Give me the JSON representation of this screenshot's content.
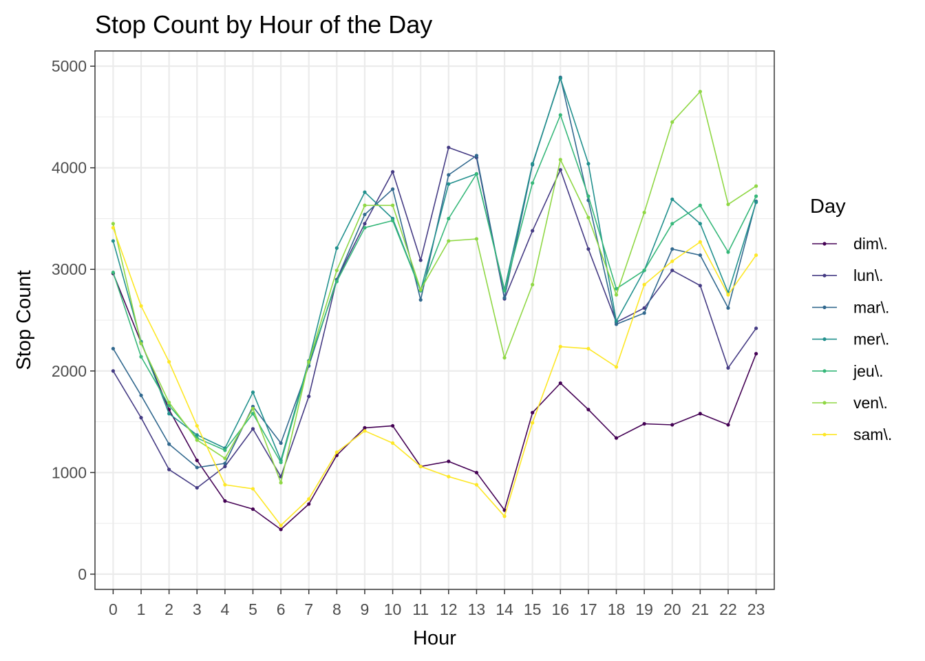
{
  "chart_data": {
    "type": "line",
    "title": "Stop Count by Hour of the Day",
    "xlabel": "Hour",
    "ylabel": "Stop Count",
    "x": [
      0,
      1,
      2,
      3,
      4,
      5,
      6,
      7,
      8,
      9,
      10,
      11,
      12,
      13,
      14,
      15,
      16,
      17,
      18,
      19,
      20,
      21,
      22,
      23
    ],
    "x_ticks": [
      "0",
      "1",
      "2",
      "3",
      "4",
      "5",
      "6",
      "7",
      "8",
      "9",
      "10",
      "11",
      "12",
      "13",
      "14",
      "15",
      "16",
      "17",
      "18",
      "19",
      "20",
      "21",
      "22",
      "23"
    ],
    "ylim": [
      -150,
      5150
    ],
    "y_ticks": [
      0,
      1000,
      2000,
      3000,
      4000,
      5000
    ],
    "grid": true,
    "legend_title": "Day",
    "legend_position": "right",
    "series": [
      {
        "name": "dim\\.",
        "color": "#440154",
        "values": [
          2960,
          2280,
          1620,
          1120,
          720,
          640,
          440,
          690,
          1170,
          1440,
          1460,
          1060,
          1110,
          1000,
          630,
          1590,
          1880,
          1620,
          1340,
          1480,
          1470,
          1580,
          1470,
          2170
        ]
      },
      {
        "name": "lun\\.",
        "color": "#443a83",
        "values": [
          2000,
          1540,
          1030,
          850,
          1060,
          1430,
          960,
          1750,
          2900,
          3450,
          3960,
          3090,
          4200,
          4100,
          2710,
          3380,
          3980,
          3200,
          2480,
          2620,
          2990,
          2840,
          2030,
          2420
        ]
      },
      {
        "name": "mar\\.",
        "color": "#31688e",
        "values": [
          2220,
          1760,
          1280,
          1050,
          1090,
          1650,
          1290,
          2050,
          2900,
          3540,
          3790,
          2700,
          3930,
          4120,
          2720,
          4030,
          4890,
          3680,
          2460,
          2570,
          3200,
          3140,
          2620,
          3670
        ]
      },
      {
        "name": "mer\\.",
        "color": "#21908d",
        "values": [
          3280,
          2290,
          1580,
          1370,
          1240,
          1790,
          1120,
          2100,
          3210,
          3760,
          3500,
          2790,
          3840,
          3940,
          2800,
          4040,
          4880,
          4040,
          2490,
          2990,
          3690,
          3450,
          2770,
          3660
        ]
      },
      {
        "name": "jeu\\.",
        "color": "#35b779",
        "values": [
          2970,
          2140,
          1660,
          1340,
          1220,
          1580,
          1100,
          2080,
          2880,
          3410,
          3480,
          2790,
          3500,
          3940,
          2790,
          3850,
          4520,
          3720,
          2810,
          2990,
          3450,
          3630,
          3170,
          3720
        ]
      },
      {
        "name": "ven\\.",
        "color": "#8fd744",
        "values": [
          3450,
          2270,
          1690,
          1320,
          1140,
          1630,
          900,
          2090,
          2990,
          3630,
          3630,
          2800,
          3280,
          3300,
          2130,
          2850,
          4080,
          3510,
          2750,
          3560,
          4450,
          4750,
          3640,
          3820
        ]
      },
      {
        "name": "sam\\.",
        "color": "#fde725",
        "values": [
          3410,
          2640,
          2090,
          1460,
          880,
          840,
          480,
          740,
          1200,
          1410,
          1290,
          1060,
          960,
          880,
          570,
          1490,
          2240,
          2220,
          2040,
          2850,
          3080,
          3270,
          2750,
          3140
        ]
      }
    ]
  }
}
